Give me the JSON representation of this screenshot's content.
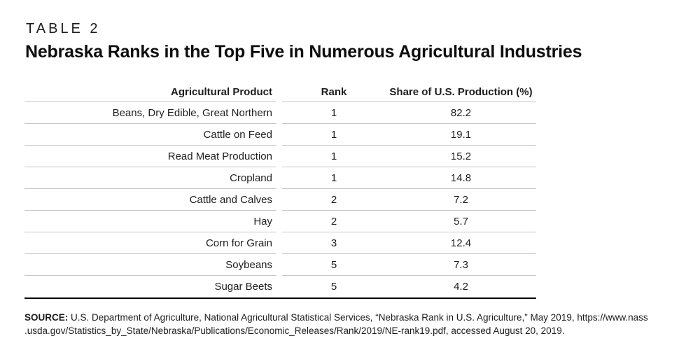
{
  "page": {
    "eyebrow": "TABLE 2",
    "title": "Nebraska Ranks in the Top Five in Numerous Agricultural Industries"
  },
  "table": {
    "columns": {
      "product": "Agricultural Product",
      "rank": "Rank",
      "share": "Share of U.S. Production (%)"
    },
    "rows": [
      {
        "product": "Beans, Dry Edible, Great Northern",
        "rank": "1",
        "share": "82.2"
      },
      {
        "product": "Cattle on Feed",
        "rank": "1",
        "share": "19.1"
      },
      {
        "product": "Read Meat Production",
        "rank": "1",
        "share": "15.2"
      },
      {
        "product": "Cropland",
        "rank": "1",
        "share": "14.8"
      },
      {
        "product": "Cattle and Calves",
        "rank": "2",
        "share": "7.2"
      },
      {
        "product": "Hay",
        "rank": "2",
        "share": "5.7"
      },
      {
        "product": "Corn for Grain",
        "rank": "3",
        "share": "12.4"
      },
      {
        "product": "Soybeans",
        "rank": "5",
        "share": "7.3"
      },
      {
        "product": "Sugar Beets",
        "rank": "5",
        "share": "4.2"
      }
    ]
  },
  "source": {
    "label": "SOURCE:",
    "line1": "U.S. Department of Agriculture, National Agricultural Statistical Services, “Nebraska Rank in U.S. Agriculture,” May 2019, https://www.nass",
    "line2": ".usda.gov/Statistics_by_State/Nebraska/Publications/Economic_Releases/Rank/2019/NE-rank19.pdf, accessed August 20, 2019."
  },
  "colors": {
    "text": "#1d1d1d",
    "rule": "#c6c6c6",
    "strong_rule": "#000000",
    "background": "#ffffff"
  }
}
